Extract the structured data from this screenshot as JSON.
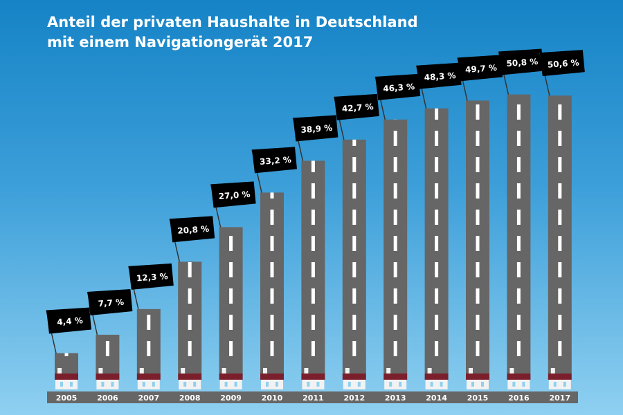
{
  "chart_data": {
    "type": "bar",
    "title": [
      "Anteil der privaten Haushalte in Deutschland",
      "mit einem Navigationgerät 2017"
    ],
    "categories": [
      "2005",
      "2006",
      "2007",
      "2008",
      "2009",
      "2010",
      "2011",
      "2012",
      "2013",
      "2014",
      "2015",
      "2016",
      "2017"
    ],
    "values": [
      4.4,
      7.7,
      12.3,
      20.8,
      27.0,
      33.2,
      38.9,
      42.7,
      46.3,
      48.3,
      49.7,
      50.8,
      50.6
    ],
    "labels": [
      "4,4 %",
      "7,7 %",
      "12,3 %",
      "20,8 %",
      "27,0 %",
      "33,2 %",
      "38,9 %",
      "42,7 %",
      "46,3 %",
      "48,3 %",
      "49,7 %",
      "50,8 %",
      "50,6 %"
    ],
    "unit": "%",
    "grid": false,
    "colors": {
      "road": "#666666",
      "lane": "#ffffff",
      "flag": "#000000",
      "roof": "#7a1f2b",
      "house": "#f2f2f2",
      "window": "#8fd0f1",
      "year_band": "#666666"
    }
  }
}
